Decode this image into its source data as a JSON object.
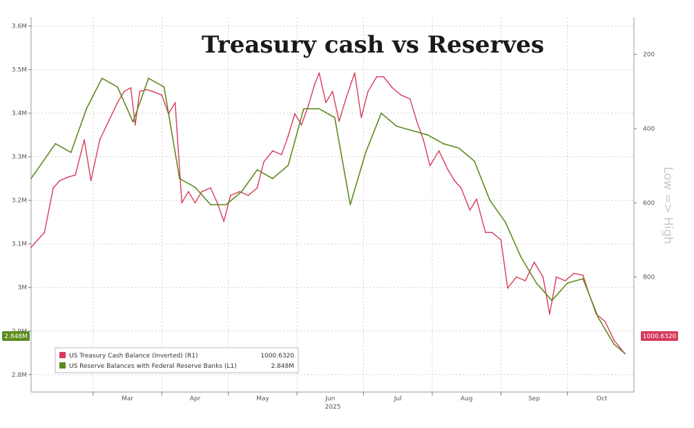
{
  "colors": {
    "cash": "#d63a5a",
    "reserves": "#5c8a1e",
    "grid": "#cfcfcf",
    "axis_text": "#555555",
    "background": "#ffffff"
  },
  "chart_data": {
    "type": "line",
    "title": "Treasury cash vs Reserves",
    "xlabel": "2025",
    "x_tick_labels": [
      "Mar",
      "Apr",
      "May",
      "Jun",
      "Jul",
      "Aug",
      "Sep",
      "Oct"
    ],
    "left_axis": {
      "ticks": [
        "3.6M",
        "3.5M",
        "3.4M",
        "3.3M",
        "3.2M",
        "3.1M",
        "3M",
        "2.9M",
        "2.8M"
      ],
      "range": [
        2.76,
        3.62
      ],
      "units": "millions USD"
    },
    "right_axis": {
      "ticks": [
        "200",
        "400",
        "600",
        "800"
      ],
      "range": [
        1110,
        100
      ],
      "inverted": true,
      "side_label": "Low => High"
    },
    "grid": true,
    "legend_position": "bottom-left",
    "series": [
      {
        "name": "US Treasury Cash Balance (Inverted) (R1)",
        "axis": "right",
        "last_value": "1000.6320",
        "color": "#d63a5a",
        "points": [
          [
            "2025-02-01",
            720
          ],
          [
            "2025-02-04",
            700
          ],
          [
            "2025-02-07",
            680
          ],
          [
            "2025-02-11",
            560
          ],
          [
            "2025-02-14",
            540
          ],
          [
            "2025-02-18",
            530
          ],
          [
            "2025-02-21",
            525
          ],
          [
            "2025-02-25",
            430
          ],
          [
            "2025-02-28",
            540
          ],
          [
            "2025-03-04",
            430
          ],
          [
            "2025-03-08",
            380
          ],
          [
            "2025-03-12",
            330
          ],
          [
            "2025-03-15",
            300
          ],
          [
            "2025-03-18",
            290
          ],
          [
            "2025-03-20",
            390
          ],
          [
            "2025-03-22",
            300
          ],
          [
            "2025-03-25",
            295
          ],
          [
            "2025-03-28",
            300
          ],
          [
            "2025-04-01",
            310
          ],
          [
            "2025-04-04",
            360
          ],
          [
            "2025-04-07",
            330
          ],
          [
            "2025-04-10",
            600
          ],
          [
            "2025-04-13",
            570
          ],
          [
            "2025-04-16",
            600
          ],
          [
            "2025-04-19",
            570
          ],
          [
            "2025-04-23",
            560
          ],
          [
            "2025-04-26",
            600
          ],
          [
            "2025-04-29",
            650
          ],
          [
            "2025-05-02",
            580
          ],
          [
            "2025-05-06",
            570
          ],
          [
            "2025-05-10",
            580
          ],
          [
            "2025-05-14",
            560
          ],
          [
            "2025-05-17",
            490
          ],
          [
            "2025-05-21",
            460
          ],
          [
            "2025-05-25",
            470
          ],
          [
            "2025-05-28",
            420
          ],
          [
            "2025-05-31",
            360
          ],
          [
            "2025-06-03",
            390
          ],
          [
            "2025-06-06",
            340
          ],
          [
            "2025-06-09",
            280
          ],
          [
            "2025-06-11",
            250
          ],
          [
            "2025-06-14",
            330
          ],
          [
            "2025-06-17",
            300
          ],
          [
            "2025-06-20",
            380
          ],
          [
            "2025-06-23",
            320
          ],
          [
            "2025-06-27",
            250
          ],
          [
            "2025-06-30",
            370
          ],
          [
            "2025-07-03",
            300
          ],
          [
            "2025-07-07",
            260
          ],
          [
            "2025-07-10",
            260
          ],
          [
            "2025-07-14",
            290
          ],
          [
            "2025-07-18",
            310
          ],
          [
            "2025-07-22",
            320
          ],
          [
            "2025-07-25",
            380
          ],
          [
            "2025-07-28",
            430
          ],
          [
            "2025-07-31",
            500
          ],
          [
            "2025-08-04",
            460
          ],
          [
            "2025-08-08",
            510
          ],
          [
            "2025-08-11",
            540
          ],
          [
            "2025-08-14",
            560
          ],
          [
            "2025-08-18",
            620
          ],
          [
            "2025-08-21",
            590
          ],
          [
            "2025-08-25",
            680
          ],
          [
            "2025-08-28",
            680
          ],
          [
            "2025-09-01",
            700
          ],
          [
            "2025-09-04",
            830
          ],
          [
            "2025-09-08",
            800
          ],
          [
            "2025-09-12",
            810
          ],
          [
            "2025-09-16",
            760
          ],
          [
            "2025-09-20",
            800
          ],
          [
            "2025-09-23",
            900
          ],
          [
            "2025-09-26",
            800
          ],
          [
            "2025-09-30",
            810
          ],
          [
            "2025-10-04",
            790
          ],
          [
            "2025-10-08",
            795
          ],
          [
            "2025-10-11",
            850
          ],
          [
            "2025-10-14",
            900
          ],
          [
            "2025-10-18",
            920
          ],
          [
            "2025-10-22",
            970
          ],
          [
            "2025-10-26",
            1000
          ]
        ]
      },
      {
        "name": "US Reserve Balances with Federal Reserve Banks (L1)",
        "axis": "left",
        "last_value": "2.848M",
        "color": "#5c8a1e",
        "points": [
          [
            "2025-02-01",
            3.25
          ],
          [
            "2025-02-12",
            3.33
          ],
          [
            "2025-02-19",
            3.31
          ],
          [
            "2025-02-26",
            3.41
          ],
          [
            "2025-03-05",
            3.48
          ],
          [
            "2025-03-12",
            3.46
          ],
          [
            "2025-03-19",
            3.38
          ],
          [
            "2025-03-26",
            3.48
          ],
          [
            "2025-04-02",
            3.46
          ],
          [
            "2025-04-09",
            3.25
          ],
          [
            "2025-04-16",
            3.23
          ],
          [
            "2025-04-23",
            3.19
          ],
          [
            "2025-04-30",
            3.19
          ],
          [
            "2025-05-07",
            3.22
          ],
          [
            "2025-05-14",
            3.27
          ],
          [
            "2025-05-21",
            3.25
          ],
          [
            "2025-05-28",
            3.28
          ],
          [
            "2025-06-04",
            3.41
          ],
          [
            "2025-06-11",
            3.41
          ],
          [
            "2025-06-18",
            3.39
          ],
          [
            "2025-06-25",
            3.19
          ],
          [
            "2025-07-02",
            3.31
          ],
          [
            "2025-07-09",
            3.4
          ],
          [
            "2025-07-16",
            3.37
          ],
          [
            "2025-07-23",
            3.36
          ],
          [
            "2025-07-30",
            3.35
          ],
          [
            "2025-08-06",
            3.33
          ],
          [
            "2025-08-13",
            3.32
          ],
          [
            "2025-08-20",
            3.29
          ],
          [
            "2025-08-27",
            3.2
          ],
          [
            "2025-09-03",
            3.15
          ],
          [
            "2025-09-10",
            3.07
          ],
          [
            "2025-09-17",
            3.01
          ],
          [
            "2025-09-24",
            2.97
          ],
          [
            "2025-10-01",
            3.01
          ],
          [
            "2025-10-08",
            3.02
          ],
          [
            "2025-10-15",
            2.93
          ],
          [
            "2025-10-22",
            2.87
          ],
          [
            "2025-10-27",
            2.848
          ]
        ]
      }
    ]
  }
}
